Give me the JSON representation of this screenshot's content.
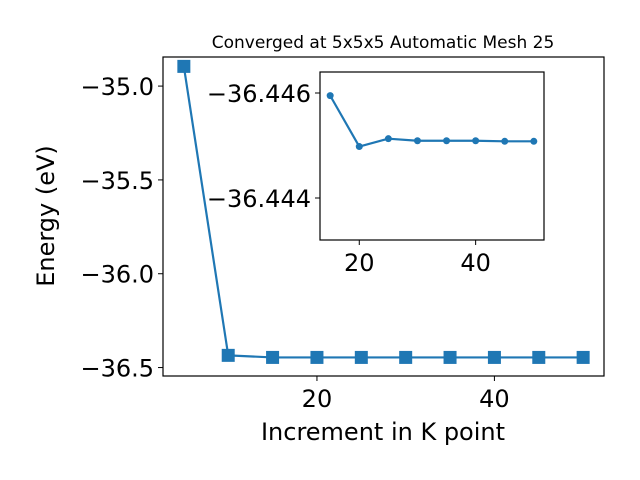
{
  "chart_data": [
    {
      "type": "line",
      "title": "Converged at 5x5x5 Automatic Mesh 25",
      "xlabel": "Increment in K point",
      "ylabel": "Energy (eV)",
      "xlim": [
        2.65,
        52.35
      ],
      "ylim": [
        -36.545,
        -34.845
      ],
      "xticks": [
        20,
        40
      ],
      "yticks": [
        -35.0,
        -35.5,
        -36.0,
        -36.5
      ],
      "xtick_labels": [
        "20",
        "40"
      ],
      "ytick_labels": [
        "−35.0",
        "−35.5",
        "−36.0",
        "−36.5"
      ],
      "grid": false,
      "marker": "square",
      "color": "#1f77b4",
      "series": [
        {
          "x": [
            5,
            10,
            15,
            20,
            25,
            30,
            35,
            40,
            45,
            50
          ],
          "y": [
            -34.895,
            -36.435,
            -36.446,
            -36.446,
            -36.446,
            -36.446,
            -36.446,
            -36.446,
            -36.446,
            -36.446
          ]
        }
      ]
    },
    {
      "type": "line",
      "title": "",
      "xlim": [
        13.25,
        51.75
      ],
      "ylim": [
        -36.4464,
        -36.4432
      ],
      "inverted_y": true,
      "xticks": [
        20,
        40
      ],
      "yticks": [
        -36.446,
        -36.444
      ],
      "xtick_labels": [
        "20",
        "40"
      ],
      "ytick_labels": [
        "−36.446",
        "−36.444"
      ],
      "grid": false,
      "marker": "circle",
      "color": "#1f77b4",
      "series": [
        {
          "x": [
            15,
            20,
            25,
            30,
            35,
            40,
            45,
            50
          ],
          "y": [
            -36.44595,
            -36.44498,
            -36.44513,
            -36.44509,
            -36.44509,
            -36.44509,
            -36.44508,
            -36.44508
          ]
        }
      ]
    }
  ]
}
